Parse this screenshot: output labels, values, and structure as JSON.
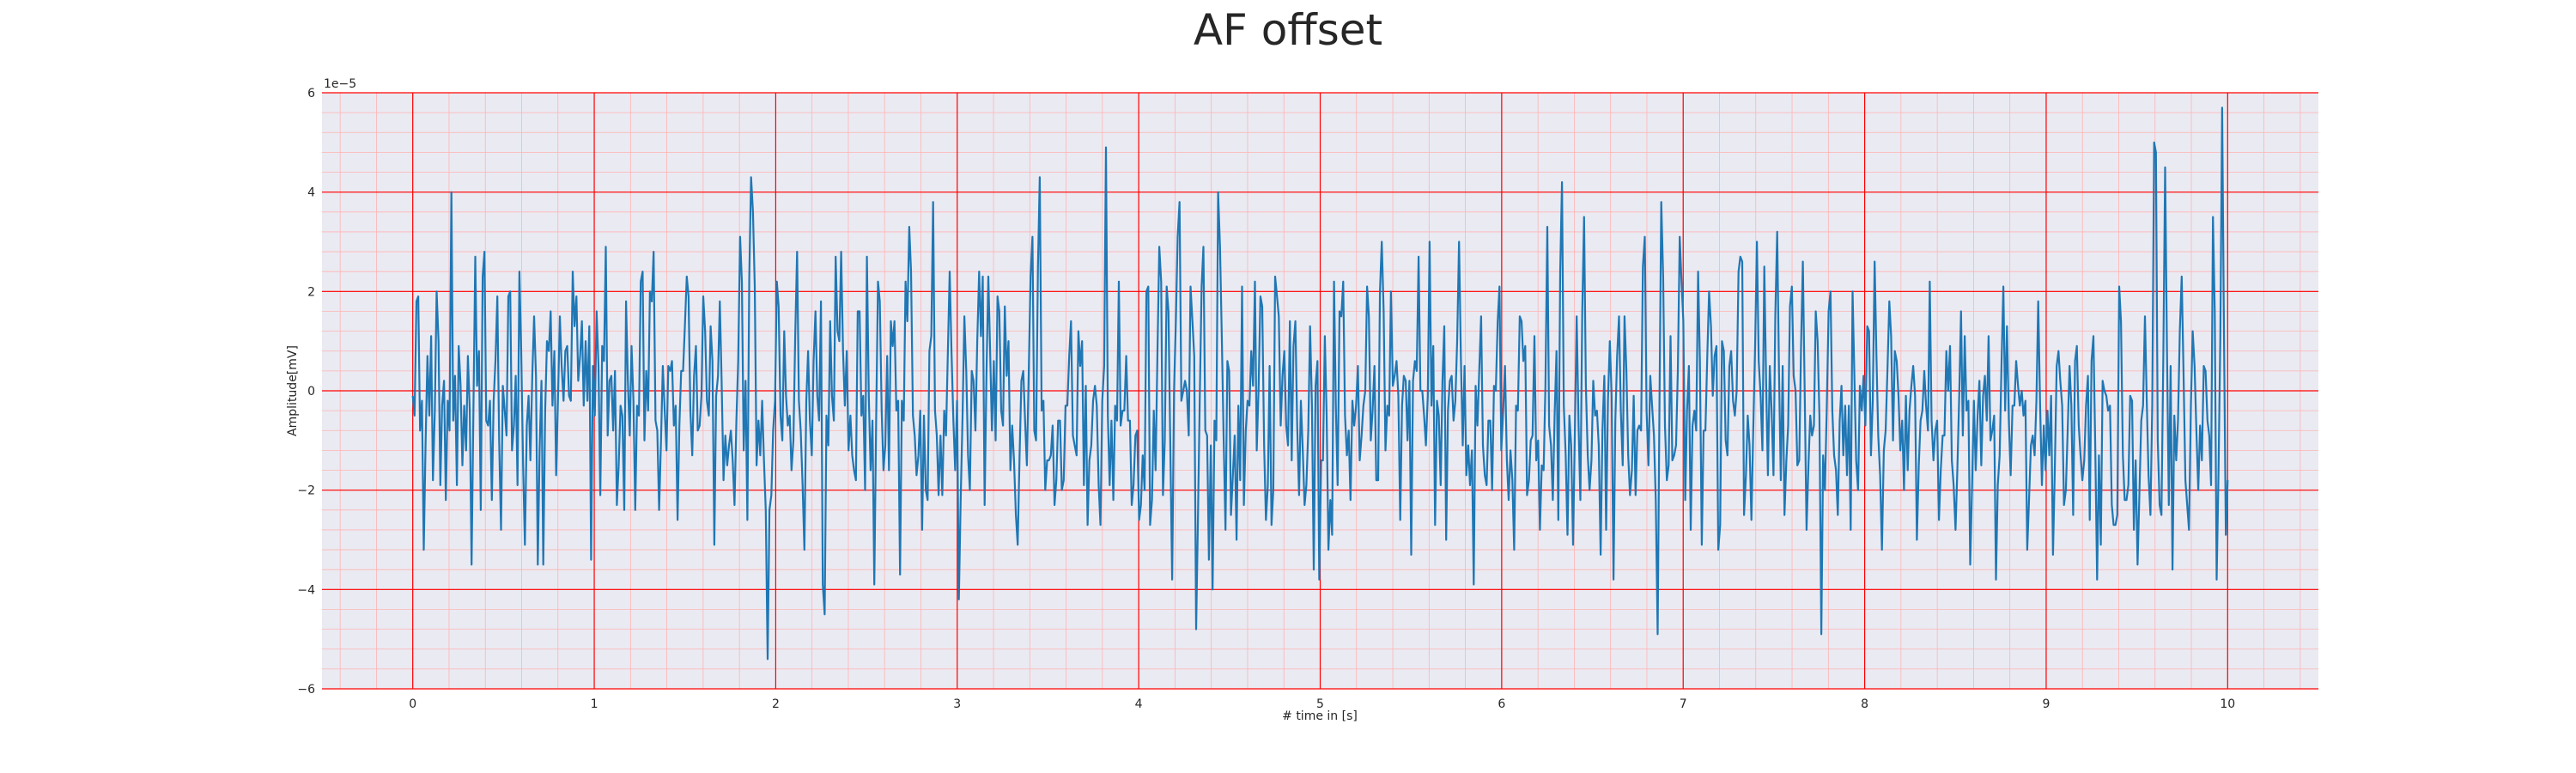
{
  "chart_data": {
    "type": "line",
    "title": "AF offset",
    "xlabel": "# time in [s]",
    "ylabel": "Amplitude[mV]",
    "y_offset_text": "1e−5",
    "xlim": [
      -0.5,
      10.5
    ],
    "ylim": [
      -6,
      6
    ],
    "xticks": [
      0,
      1,
      2,
      3,
      4,
      5,
      6,
      7,
      8,
      9,
      10
    ],
    "yticks": [
      -6,
      -4,
      -2,
      0,
      2,
      4,
      6
    ],
    "grid": true,
    "colors": {
      "line": "#1f77b4",
      "plot_background": "#eaeaf2",
      "major_grid": "#ff0000",
      "minor_grid": "#ffb3b3"
    },
    "series": [
      {
        "x_start": 0,
        "x_end": 10,
        "values": [
          -0.1,
          -0.5,
          1.8,
          1.9,
          -0.8,
          -0.2,
          -3.2,
          -1.0,
          0.7,
          -0.5,
          1.1,
          -1.8,
          -0.4,
          2.0,
          1.0,
          -1.9,
          -0.3,
          0.2,
          -2.2,
          -0.2,
          -0.8,
          4.0,
          -0.6,
          0.3,
          -1.9,
          0.9,
          0.1,
          -1.5,
          -0.3,
          -1.2,
          0.7,
          -0.4,
          -3.5,
          -0.3,
          2.7,
          0.1,
          0.8,
          -2.4,
          2.3,
          2.8,
          -0.6,
          -0.7,
          -0.2,
          -2.2,
          -0.2,
          0.6,
          1.9,
          -1.0,
          -2.8,
          0.1,
          -0.4,
          -0.9,
          1.9,
          2.0,
          -1.2,
          -0.7,
          0.3,
          -1.9,
          2.4,
          0.8,
          -1.5,
          -3.1,
          -0.7,
          -0.1,
          -1.4,
          0.3,
          1.5,
          0.3,
          -3.5,
          -1.2,
          0.2,
          -3.5,
          -0.4,
          1.0,
          0.8,
          1.6,
          -0.3,
          0.8,
          -1.7,
          -0.1,
          1.5,
          0.5,
          -0.2,
          0.8,
          0.9,
          -0.1,
          -0.2,
          2.4,
          1.3,
          1.9,
          0.2,
          0.7,
          1.4,
          -0.3,
          1.0,
          -0.2,
          1.3,
          -3.4,
          0.5,
          -0.5,
          1.6,
          0.5,
          -2.1,
          0.9,
          0.6,
          2.9,
          -0.9,
          0.2,
          0.3,
          -0.8,
          0.4,
          -2.3,
          -1.5,
          -0.3,
          -0.5,
          -2.4,
          1.8,
          0.2,
          -0.9,
          0.9,
          -0.2,
          -2.4,
          -0.3,
          -0.5,
          2.2,
          2.4,
          -1.0,
          0.4,
          -0.4,
          2.0,
          1.8,
          2.8,
          -0.6,
          -0.8,
          -2.4,
          -1.0,
          0.5,
          -0.4,
          -1.2,
          0.5,
          0.4,
          0.6,
          -0.7,
          -0.3,
          -2.6,
          -0.7,
          0.4,
          0.4,
          1.3,
          2.3,
          1.9,
          -0.4,
          -1.3,
          0.3,
          0.9,
          -0.8,
          -0.7,
          -0.1,
          1.9,
          1.2,
          -0.2,
          -0.5,
          1.3,
          0.6,
          -3.1,
          -0.1,
          0.3,
          1.8,
          0.2,
          -1.8,
          -0.9,
          -1.5,
          -1.1,
          -0.8,
          -1.4,
          -2.3,
          -0.6,
          0.6,
          3.1,
          2.2,
          -1.2,
          0.2,
          -2.6,
          2.3,
          4.3,
          3.6,
          2.1,
          -1.5,
          -0.6,
          -1.3,
          -0.2,
          -1.4,
          -2.4,
          -5.4,
          -2.4,
          -2.1,
          -0.8,
          -0.2,
          2.2,
          1.7,
          -0.5,
          -1.0,
          1.2,
          -0.1,
          -0.7,
          -0.5,
          -1.6,
          -1.0,
          1.1,
          2.8,
          -0.2,
          -0.8,
          -1.9,
          -3.2,
          -0.2,
          0.8,
          -0.6,
          -1.3,
          0.6,
          1.6,
          -0.1,
          -0.6,
          1.8,
          -3.9,
          -4.5,
          -0.5,
          -1.1,
          1.4,
          -0.1,
          -0.6,
          2.7,
          1.2,
          1.0,
          2.8,
          0.8,
          -0.3,
          0.8,
          -1.2,
          -0.5,
          -1.3,
          -1.6,
          -1.8,
          1.6,
          1.6,
          -0.5,
          -0.1,
          -2.0,
          2.7,
          -0.1,
          -1.6,
          -0.6,
          -3.9,
          -0.7,
          2.2,
          1.8,
          -0.4,
          -1.6,
          -1.1,
          0.7,
          -1.6,
          1.4,
          0.9,
          1.4,
          -0.4,
          -0.2,
          -3.7,
          -0.2,
          -0.6,
          2.2,
          1.4,
          3.3,
          2.4,
          -0.5,
          -0.9,
          -1.7,
          -1.3,
          -0.4,
          -2.8,
          -0.5,
          -2.0,
          -2.2,
          0.8,
          1.1,
          3.8,
          -0.4,
          -0.9,
          -2.1,
          -0.9,
          -2.1,
          -0.4,
          -0.9,
          0.8,
          2.4,
          0.8,
          -0.6,
          -1.6,
          -0.2,
          -4.2,
          -2.2,
          -0.5,
          1.5,
          0.4,
          -1.3,
          -2.0,
          0.4,
          0.2,
          -0.8,
          1.0,
          2.4,
          1.1,
          2.3,
          -2.3,
          0.3,
          2.3,
          0.8,
          -0.8,
          0.6,
          -1.0,
          1.9,
          1.6,
          -0.4,
          -0.7,
          1.7,
          0.3,
          1.0,
          -1.6,
          -0.7,
          -1.4,
          -2.5,
          -3.1,
          -1.3,
          0.2,
          0.4,
          -0.6,
          -1.5,
          0.4,
          2.3,
          3.1,
          -0.8,
          -1.0,
          2.5,
          4.3,
          -0.4,
          -0.2,
          -2.0,
          -1.4,
          -1.4,
          -1.3,
          -0.7,
          -2.3,
          -1.8,
          -0.6,
          -0.6,
          -2.0,
          -1.8,
          -0.3,
          -0.3,
          0.7,
          1.4,
          -0.9,
          -1.1,
          -1.3,
          1.2,
          0.5,
          1.0,
          -1.9,
          0.1,
          -2.7,
          -1.4,
          -1.1,
          -0.2,
          0.1,
          -0.3,
          -1.9,
          -2.7,
          -0.2,
          0.5,
          4.9,
          -0.5,
          -1.9,
          -0.6,
          -2.2,
          -0.3,
          -0.6,
          2.2,
          -0.7,
          -0.4,
          -0.4,
          0.7,
          -0.6,
          -0.6,
          -2.3,
          -1.9,
          -0.9,
          -0.8,
          -2.6,
          -2.3,
          -1.3,
          -2.0,
          2.0,
          2.1,
          -2.7,
          -2.2,
          -0.4,
          -1.6,
          0.8,
          2.9,
          2.2,
          -2.1,
          -1.0,
          2.1,
          1.6,
          -1.2,
          -3.8,
          0.0,
          1.4,
          3.1,
          3.8,
          -0.2,
          0.0,
          0.2,
          0.0,
          -0.9,
          2.1,
          1.4,
          0.7,
          -4.8,
          -2.6,
          -0.2,
          2.1,
          2.9,
          -0.8,
          -0.9,
          -3.4,
          -1.1,
          -4.0,
          -0.6,
          -1.0,
          4.0,
          2.9,
          1.1,
          -1.0,
          -2.8,
          0.6,
          0.4,
          -2.5,
          -1.7,
          -0.9,
          -3.0,
          -0.3,
          -1.8,
          2.1,
          -2.3,
          -0.8,
          -0.2,
          -0.3,
          0.8,
          0.1,
          2.2,
          -1.2,
          0.1,
          1.9,
          1.7,
          -1.1,
          -2.6,
          -1.9,
          0.5,
          -2.7,
          -2.0,
          2.3,
          1.9,
          1.5,
          -0.7,
          0.3,
          0.8,
          -0.7,
          -1.1,
          1.4,
          -1.4,
          0.9,
          1.4,
          -0.7,
          -2.1,
          -0.2,
          -1.2,
          -2.3,
          -1.9,
          -0.8,
          1.3,
          -0.3,
          -3.6,
          0.1,
          0.6,
          -3.8,
          -1.4,
          -1.4,
          1.1,
          -0.5,
          -3.2,
          -2.2,
          -2.9,
          2.2,
          -0.3,
          -1.9,
          1.6,
          1.5,
          2.2,
          -0.5,
          -1.3,
          -0.8,
          -2.2,
          -0.2,
          -0.7,
          -0.3,
          0.5,
          -1.4,
          -0.9,
          -0.3,
          0.0,
          2.1,
          1.5,
          -1.0,
          -0.4,
          0.5,
          -1.8,
          -1.8,
          2.0,
          3.0,
          1.6,
          -1.2,
          -0.3,
          -0.5,
          2.0,
          0.1,
          0.3,
          0.6,
          -0.1,
          -2.6,
          -0.3,
          0.3,
          0.2,
          -1.0,
          0.2,
          -3.3,
          0.2,
          0.6,
          0.4,
          2.7,
          0.0,
          0.0,
          -0.5,
          -1.1,
          -0.1,
          3.0,
          -0.3,
          0.9,
          -2.7,
          -0.2,
          -0.5,
          -1.9,
          0.2,
          1.3,
          -3.0,
          -0.4,
          0.2,
          0.3,
          -0.6,
          -0.2,
          1.0,
          3.0,
          0.7,
          -1.1,
          0.5,
          -1.7,
          -1.1,
          -1.9,
          -1.2,
          -3.9,
          0.1,
          -0.7,
          0.4,
          1.5,
          -1.1,
          -1.7,
          -1.9,
          -0.6,
          -0.6,
          -2.0,
          0.1,
          0.0,
          1.4,
          2.1,
          -1.2,
          -0.4,
          0.5,
          -1.4,
          -2.2,
          -1.2,
          -1.8,
          -3.2,
          -0.3,
          -0.4,
          1.5,
          1.4,
          0.6,
          0.9,
          -2.1,
          -1.8,
          -1.0,
          -0.9,
          1.1,
          -1.4,
          -1.0,
          -2.8,
          -1.5,
          -1.6,
          0.1,
          3.3,
          -0.7,
          -1.1,
          -2.2,
          -0.5,
          0.8,
          -2.6,
          2.4,
          4.2,
          -0.3,
          -1.3,
          -2.9,
          -0.5,
          -1.1,
          -3.1,
          -0.8,
          1.5,
          -0.7,
          -2.2,
          1.6,
          3.5,
          0.1,
          -1.3,
          -2.0,
          -1.4,
          0.2,
          -0.5,
          -0.4,
          -1.1,
          -3.3,
          -0.8,
          0.3,
          -2.8,
          -0.2,
          1.0,
          -0.1,
          -3.8,
          -0.6,
          0.7,
          1.5,
          -0.4,
          -1.5,
          1.5,
          0.4,
          -1.3,
          -2.1,
          -1.6,
          -0.1,
          -2.1,
          -0.8,
          -0.7,
          -0.8,
          2.5,
          3.1,
          -0.4,
          -1.5,
          0.3,
          -0.3,
          -0.9,
          -2.2,
          -4.9,
          -0.3,
          3.8,
          2.3,
          -0.7,
          -1.8,
          -1.5,
          1.1,
          -1.4,
          -1.3,
          -1.1,
          0.4,
          3.1,
          2.2,
          1.4,
          -2.2,
          -0.4,
          0.5,
          -2.8,
          -0.7,
          -0.4,
          -0.8,
          2.4,
          0.6,
          -3.1,
          -0.8,
          -0.8,
          0.7,
          2.0,
          1.3,
          -0.1,
          0.7,
          0.9,
          -3.2,
          -2.7,
          1.0,
          0.8,
          -1.0,
          -1.3,
          0.5,
          0.8,
          -0.2,
          -0.5,
          0.0,
          2.4,
          2.7,
          2.6,
          -2.5,
          -1.7,
          -0.5,
          -1.1,
          -2.6,
          -0.8,
          0.9,
          3.0,
          0.6,
          -0.1,
          -1.2,
          2.5,
          0.2,
          -1.7,
          0.5,
          -0.4,
          -1.7,
          1.5,
          3.2,
          0.4,
          -1.8,
          0.5,
          -2.5,
          -1.4,
          -0.7,
          1.7,
          2.1,
          0.3,
          0.0,
          -1.5,
          -1.4,
          0.9,
          2.6,
          -0.1,
          -2.8,
          -1.5,
          -0.5,
          -0.9,
          -0.7,
          1.6,
          1.0,
          -0.5,
          -4.9,
          -1.3,
          -2.0,
          -0.3,
          1.6,
          2.0,
          -0.4,
          -1.3,
          -1.6,
          -2.5,
          -0.6,
          0.1,
          -1.3,
          -0.3,
          -1.7,
          -0.3,
          -2.8,
          2.0,
          0.3,
          -1.4,
          -2.0,
          0.1,
          -0.4,
          0.3,
          -0.7,
          1.3,
          1.2,
          -1.3,
          -0.2,
          2.6,
          0.7,
          -0.9,
          -1.7,
          -3.2,
          -1.2,
          -0.8,
          0.4,
          1.8,
          1.1,
          -1.0,
          0.8,
          0.6,
          -0.1,
          -1.2,
          -0.6,
          -2.0,
          -0.1,
          -1.6,
          -0.4,
          0.1,
          0.5,
          -0.1,
          -3.0,
          -1.5,
          -0.6,
          -0.4,
          0.4,
          -0.3,
          -0.8,
          2.2,
          -0.6,
          -1.4,
          -0.8,
          -0.6,
          -2.6,
          -1.6,
          -0.9,
          -0.9,
          0.8,
          0.0,
          0.9,
          -1.4,
          -1.9,
          -2.8,
          -1.6,
          -0.1,
          1.6,
          -0.9,
          1.1,
          -0.4,
          -0.2,
          -3.5,
          -1.9,
          -0.2,
          -1.6,
          -0.5,
          0.2,
          -1.5,
          -0.1,
          0.3,
          -0.6,
          1.1,
          -1.0,
          -0.8,
          -0.5,
          -3.8,
          -1.9,
          -1.3,
          0.5,
          2.1,
          -0.4,
          1.3,
          -0.6,
          -1.7,
          -0.3,
          -0.3,
          0.6,
          0.1,
          -0.3,
          0.0,
          -0.5,
          -0.2,
          -3.2,
          -2.2,
          -1.1,
          -0.9,
          -1.3,
          -0.2,
          1.8,
          -0.3,
          -1.9,
          -0.7,
          -1.6,
          -0.4,
          -1.3,
          -0.1,
          -3.3,
          -1.6,
          0.5,
          0.8,
          0.2,
          -0.3,
          -2.3,
          -2.0,
          -0.8,
          0.5,
          -0.3,
          -2.5,
          0.6,
          0.9,
          -0.7,
          -1.3,
          -1.8,
          -1.4,
          -0.3,
          0.3,
          -2.6,
          0.6,
          1.1,
          -1.1,
          -3.8,
          -1.3,
          -3.1,
          0.2,
          0.0,
          -0.1,
          -0.4,
          -0.3,
          -2.3,
          -2.7,
          -2.7,
          -2.5,
          2.1,
          1.4,
          -1.3,
          -2.2,
          -2.2,
          -1.9,
          -0.1,
          -0.2,
          -2.8,
          -1.4,
          -3.5,
          -2.1,
          -0.6,
          -0.3,
          1.5,
          -0.2,
          -1.7,
          -2.5,
          -0.3,
          5.0,
          4.8,
          -1.0,
          -2.3,
          -2.5,
          0.7,
          4.5,
          0.9,
          -2.3,
          0.5,
          -3.6,
          -0.5,
          -1.4,
          -0.6,
          1.2,
          2.3,
          0.4,
          -1.8,
          -2.3,
          -2.8,
          -0.3,
          1.2,
          0.5,
          -0.8,
          -2.0,
          -0.7,
          -1.4,
          0.5,
          0.4,
          -0.6,
          -0.9,
          -1.9,
          3.5,
          1.6,
          -3.8,
          -1.7,
          1.1,
          5.7,
          1.2,
          -2.9,
          -1.8
        ]
      }
    ]
  }
}
